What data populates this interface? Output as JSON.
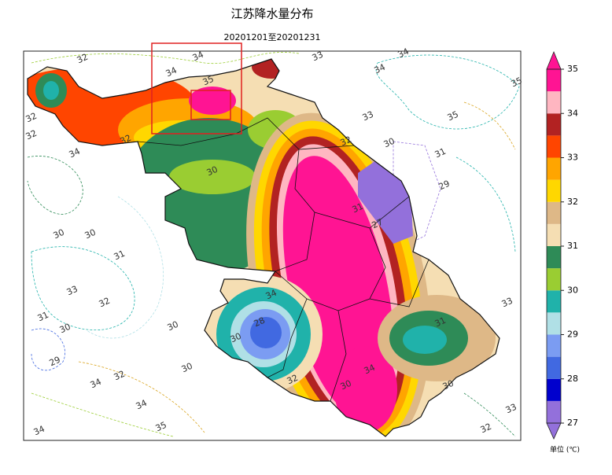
{
  "title": "江苏降水量分布",
  "subtitle": "20201201至20201231",
  "colorbar": {
    "levels": [
      27,
      27.5,
      28,
      28.5,
      29,
      29.5,
      30,
      30.5,
      31,
      31.5,
      32,
      32.5,
      33,
      33.5,
      34,
      34.5,
      35
    ],
    "colors": [
      "#9370DB",
      "#0000CD",
      "#4169E1",
      "#7B9CF2",
      "#B0E0E6",
      "#20B2AA",
      "#9ACD32",
      "#2E8B57",
      "#F5DEB3",
      "#DEB887",
      "#FFD700",
      "#FFA500",
      "#FF4500",
      "#B22222",
      "#FFB6C1",
      "#FF1493"
    ],
    "ticks": [
      27,
      28,
      29,
      30,
      31,
      32,
      33,
      34,
      35
    ],
    "unit": "单位 (℃)"
  },
  "contour_labels": [
    32,
    34,
    34,
    35,
    33,
    34,
    34,
    35,
    35,
    32,
    32,
    34,
    32,
    30,
    30,
    30,
    31,
    33,
    32,
    31,
    30,
    30,
    29,
    30,
    34,
    32,
    34,
    35,
    34,
    33,
    30,
    31,
    29,
    33,
    31,
    30,
    33,
    32,
    32,
    34,
    30,
    34,
    28,
    30,
    27,
    31,
    32
  ]
}
